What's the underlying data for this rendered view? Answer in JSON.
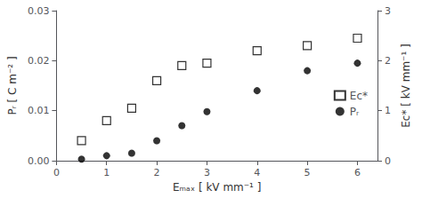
{
  "chart_data": {
    "type": "scatter",
    "xlabel": "Eₘₐₓ [ kV mm⁻¹ ]",
    "ylabel": "Pᵣ [ C m⁻² ]",
    "y2label": "Ec* [ kV mm⁻¹ ]",
    "x": [
      0.5,
      1.0,
      1.5,
      2.0,
      2.5,
      3.0,
      4.0,
      5.0,
      6.0
    ],
    "series": [
      {
        "name": "Ec*",
        "color": "#000000",
        "marker": "open_square",
        "axis": "y2",
        "values": [
          0.4,
          0.8,
          1.05,
          1.6,
          1.9,
          1.95,
          2.2,
          2.3,
          2.45
        ]
      },
      {
        "name": "Pᵣ",
        "color": "#000000",
        "marker": "circle",
        "values": [
          0.0003,
          0.001,
          0.0015,
          0.004,
          0.007,
          0.0098,
          0.014,
          0.018,
          0.0195
        ]
      }
    ],
    "xlim": [
      0,
      6.4
    ],
    "xticks": [
      0,
      1,
      2,
      3,
      4,
      5,
      6
    ],
    "ylim": [
      0,
      0.03
    ],
    "yticks": [
      {
        "value": 0,
        "label": "0.00"
      },
      0.01,
      0.02,
      0.03
    ],
    "y2lim": [
      0,
      3
    ],
    "y2ticks": [
      0,
      1,
      2,
      3
    ],
    "grid": false,
    "legend": "right"
  }
}
